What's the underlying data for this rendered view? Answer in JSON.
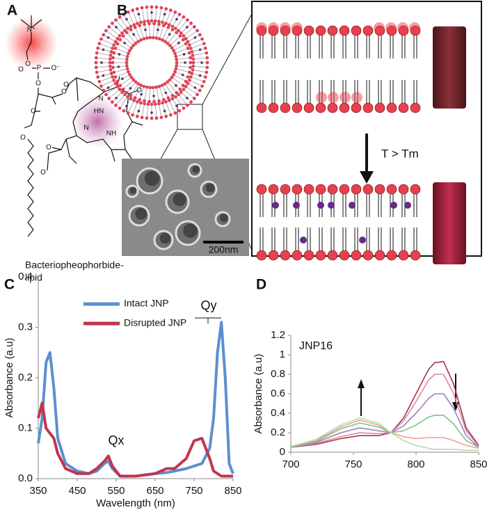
{
  "panels": {
    "labels": [
      "A",
      "B",
      "C",
      "D"
    ],
    "molecule": {
      "name_lines": [
        "Bacteriopheophorbide-",
        "lipid"
      ],
      "atoms": [
        "N⁺",
        "O",
        "O",
        "P",
        "O⁻",
        "O",
        "O",
        "O",
        "O",
        "O",
        "HN",
        "N",
        "NH",
        "N",
        "O",
        "O",
        "O"
      ]
    },
    "micrograph_scale": "200nm",
    "transition": "T > Tm"
  },
  "chart_data": [
    {
      "type": "line",
      "ylabel": "Absorbance (a.u)",
      "xlabel": "Wavelength (nm)",
      "xlim": [
        350,
        850
      ],
      "xticks": [
        350,
        450,
        550,
        650,
        750,
        850
      ],
      "ylim": [
        0,
        0.4
      ],
      "yticks": [
        {
          "value": 0,
          "label": "0.0"
        },
        0.1,
        0.2,
        0.3,
        0.4
      ],
      "annotations": [
        "Qx",
        "Qy"
      ],
      "x": [
        350,
        360,
        370,
        380,
        390,
        400,
        420,
        450,
        480,
        500,
        520,
        530,
        540,
        560,
        600,
        650,
        680,
        700,
        730,
        750,
        770,
        790,
        800,
        810,
        820,
        830,
        840,
        850
      ],
      "series": [
        {
          "name": "Intact JNP",
          "color": "#5b8fd0",
          "values": [
            0.07,
            0.12,
            0.23,
            0.25,
            0.18,
            0.08,
            0.03,
            0.015,
            0.01,
            0.015,
            0.03,
            0.035,
            0.02,
            0.005,
            0.005,
            0.01,
            0.012,
            0.015,
            0.02,
            0.025,
            0.03,
            0.06,
            0.12,
            0.25,
            0.31,
            0.2,
            0.03,
            0.01
          ]
        },
        {
          "name": "Disrupted JNP",
          "color": "#c0354e",
          "values": [
            0.12,
            0.15,
            0.1,
            0.09,
            0.08,
            0.05,
            0.02,
            0.01,
            0.01,
            0.02,
            0.035,
            0.045,
            0.025,
            0.005,
            0.005,
            0.01,
            0.02,
            0.02,
            0.04,
            0.075,
            0.08,
            0.04,
            0.015,
            0.01,
            0.005,
            0.005,
            0.005,
            0.005
          ]
        }
      ]
    },
    {
      "type": "line",
      "title": "JNP16",
      "ylabel": "Absorbance (a.u)",
      "xlim": [
        700,
        850
      ],
      "xticks": [
        700,
        750,
        800,
        850
      ],
      "ylim": [
        0,
        1.2
      ],
      "yticks": [
        0,
        0.2,
        0.4,
        0.6,
        0.8,
        1,
        1.2
      ],
      "x": [
        700,
        720,
        740,
        755,
        770,
        780,
        790,
        800,
        810,
        815,
        822,
        830,
        840,
        850
      ],
      "series": [
        {
          "color": "#a8324a",
          "values": [
            0.05,
            0.08,
            0.14,
            0.17,
            0.17,
            0.2,
            0.35,
            0.6,
            0.85,
            0.92,
            0.93,
            0.7,
            0.25,
            0.07
          ]
        },
        {
          "color": "#d98aa0",
          "values": [
            0.05,
            0.09,
            0.16,
            0.2,
            0.19,
            0.2,
            0.32,
            0.52,
            0.74,
            0.8,
            0.8,
            0.6,
            0.22,
            0.06
          ]
        },
        {
          "color": "#9b7fb8",
          "values": [
            0.05,
            0.1,
            0.2,
            0.25,
            0.22,
            0.2,
            0.27,
            0.4,
            0.55,
            0.6,
            0.6,
            0.45,
            0.17,
            0.05
          ]
        },
        {
          "color": "#7cc08a",
          "values": [
            0.05,
            0.11,
            0.24,
            0.3,
            0.26,
            0.2,
            0.22,
            0.28,
            0.36,
            0.38,
            0.38,
            0.29,
            0.12,
            0.05
          ]
        },
        {
          "color": "#f0a090",
          "values": [
            0.06,
            0.12,
            0.26,
            0.33,
            0.28,
            0.2,
            0.16,
            0.14,
            0.15,
            0.15,
            0.15,
            0.12,
            0.07,
            0.04
          ]
        },
        {
          "color": "#b8dcb0",
          "values": [
            0.06,
            0.13,
            0.28,
            0.35,
            0.3,
            0.2,
            0.12,
            0.07,
            0.04,
            0.03,
            0.03,
            0.03,
            0.02,
            0.02
          ]
        }
      ]
    }
  ]
}
